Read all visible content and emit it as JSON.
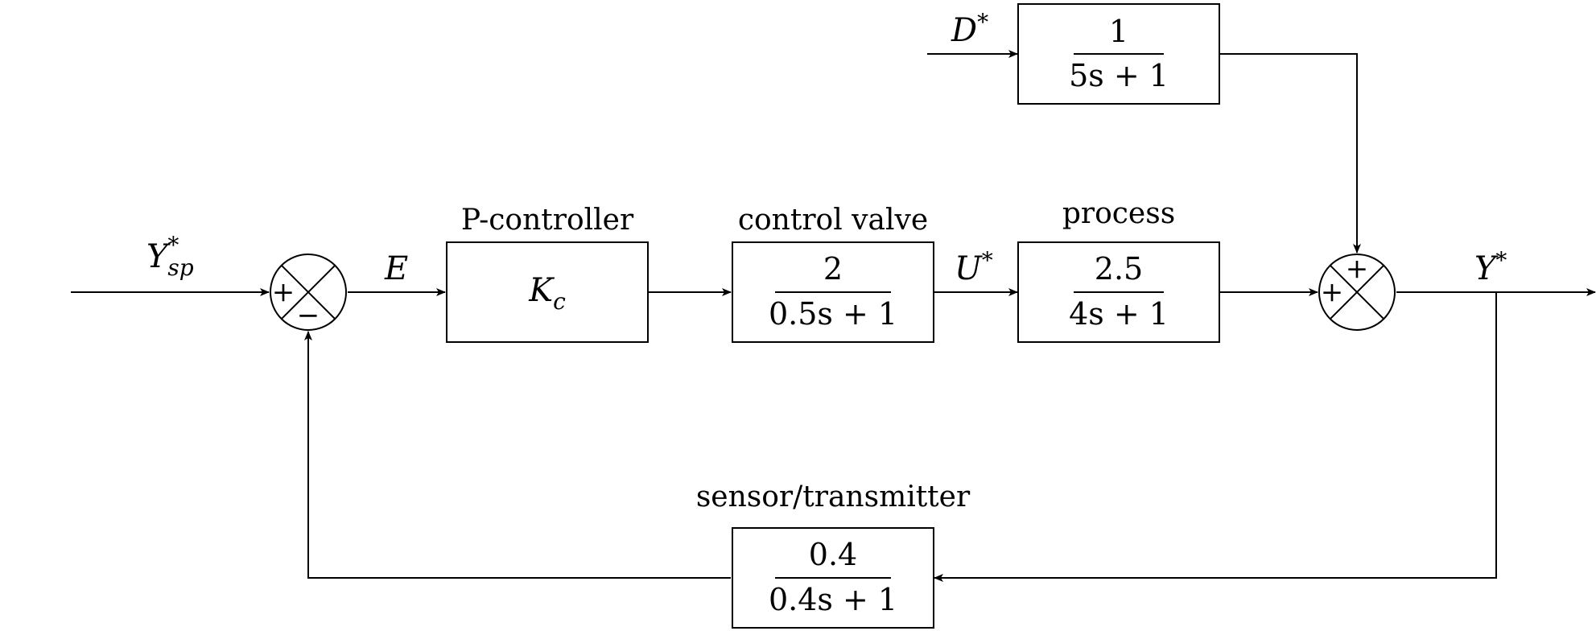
{
  "diagram": {
    "title": "Feedback control loop block diagram",
    "signals": {
      "setpoint": {
        "base": "Y",
        "sup": "*",
        "sub": "sp"
      },
      "error": {
        "base": "E"
      },
      "valve_output": {
        "base": "U",
        "sup": "*"
      },
      "disturbance": {
        "base": "D",
        "sup": "*"
      },
      "output": {
        "base": "Y",
        "sup": "*"
      }
    },
    "blocks": {
      "controller": {
        "label": "P-controller",
        "base": "K",
        "sub": "c"
      },
      "valve": {
        "label": "control valve",
        "numerator": "2",
        "denominator": "0.5s + 1"
      },
      "process": {
        "label": "process",
        "numerator": "2.5",
        "denominator": "4s + 1"
      },
      "disturbance": {
        "label": "",
        "numerator": "1",
        "denominator": "5s + 1"
      },
      "sensor": {
        "label": "sensor/transmitter",
        "numerator": "0.4",
        "denominator": "0.4s + 1"
      }
    },
    "summing_junctions": {
      "error_junction": {
        "left_sign": "+",
        "bottom_sign": "−"
      },
      "output_junction": {
        "left_sign": "+",
        "top_sign": "+"
      }
    }
  }
}
